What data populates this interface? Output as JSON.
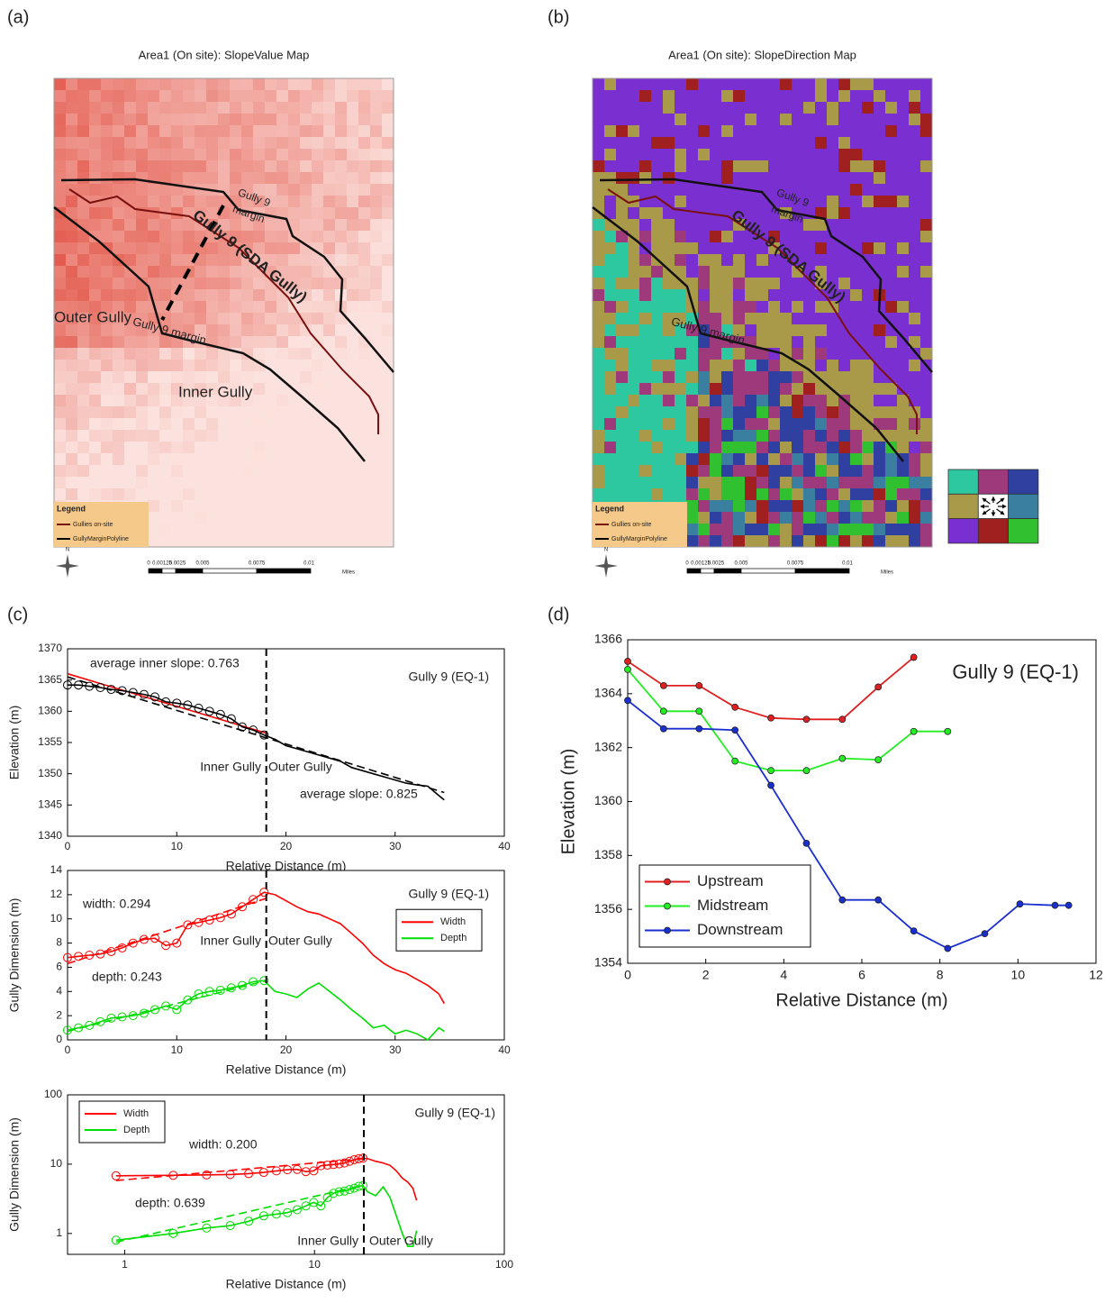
{
  "panel_labels": [
    "(a)",
    "(b)",
    "(c)",
    "(d)"
  ],
  "maps": [
    {
      "title": "Area1 (On site): SlopeValue Map",
      "labels": [
        "Gully 9",
        "margin",
        "Gully 9 (SDA Gully)",
        "Gully 9 margin",
        "Outer Gully",
        "Inner Gully"
      ],
      "legend": {
        "title": "Legend",
        "entries": [
          "Gullies on-site",
          "GullyMarginPolyline"
        ]
      },
      "north": "N",
      "scale": [
        "0",
        "0.00125",
        "0.0025",
        "0.005",
        "0.0075",
        "0.01",
        "Miles"
      ]
    },
    {
      "title": "Area1 (On site): SlopeDirection Map",
      "labels": [
        "Gully 9",
        "margin",
        "Gully 9 (SDA Gully)",
        "Gully 9 margin"
      ],
      "legend": {
        "title": "Legend",
        "entries": [
          "Gullies on-site",
          "GullyMarginPolyline"
        ]
      },
      "north": "N",
      "scale": [
        "0",
        "0.00125",
        "0.0025",
        "0.005",
        "0.0075",
        "0.01",
        "Miles"
      ]
    }
  ],
  "chart_data": [
    {
      "type": "line",
      "xlabel": "Relative Distance (m)",
      "ylabel": "Elevation (m)",
      "xlim": [
        0,
        40
      ],
      "ylim": [
        1340,
        1370
      ],
      "xticks": [
        0,
        10,
        20,
        30,
        40
      ],
      "yticks": [
        1340,
        1345,
        1350,
        1355,
        1360,
        1365,
        1370
      ],
      "marker": "circle",
      "vline": 18.2,
      "series": [
        {
          "color": "#000000",
          "x": [
            0,
            1,
            2,
            3,
            4,
            5,
            6,
            7,
            8,
            9,
            10,
            11,
            12,
            13,
            14,
            15,
            16,
            17,
            18,
            19,
            20,
            21,
            22,
            23,
            24,
            25,
            26,
            27,
            28,
            29,
            30,
            31,
            32,
            33,
            34,
            34.5
          ],
          "values": [
            1364.2,
            1364.2,
            1364,
            1363.8,
            1363.5,
            1363.3,
            1363,
            1362.7,
            1362.3,
            1361.5,
            1361.3,
            1361,
            1360.5,
            1360,
            1359.5,
            1358.8,
            1357.5,
            1357,
            1356.2,
            1355.5,
            1354.5,
            1354,
            1353.5,
            1353,
            1352.5,
            1352,
            1351,
            1350.5,
            1350,
            1349.5,
            1349,
            1348.5,
            1348.2,
            1348,
            1346.5,
            1345.8
          ]
        }
      ],
      "fits": [
        {
          "color": "#ff0000",
          "dashed": false,
          "x": [
            0,
            18.2
          ],
          "values": [
            1366,
            1356.5
          ]
        },
        {
          "color": "#000000",
          "dashed": true,
          "x": [
            0,
            34.5
          ],
          "values": [
            1365.5,
            1347
          ]
        }
      ],
      "annotations": [
        "average inner slope: 0.763",
        "Gully 9 (EQ-1)",
        "Inner Gully",
        "Outer Gully",
        "average slope: 0.825"
      ]
    },
    {
      "type": "line",
      "xlabel": "Relative Distance (m)",
      "ylabel": "Gully Dimension (m)",
      "xlim": [
        0,
        40
      ],
      "ylim": [
        0,
        14
      ],
      "xticks": [
        0,
        10,
        20,
        30,
        40
      ],
      "yticks": [
        0,
        2,
        4,
        6,
        8,
        10,
        12,
        14
      ],
      "marker": "circle",
      "vline": 18.2,
      "legend": "right",
      "series": [
        {
          "name": "Width",
          "color": "#ff0000",
          "x": [
            0,
            1,
            2,
            3,
            4,
            5,
            6,
            7,
            8,
            9,
            10,
            11,
            12,
            13,
            14,
            15,
            16,
            17,
            18,
            19,
            20,
            21,
            22,
            23,
            24,
            25,
            26,
            27,
            28,
            29,
            30,
            31,
            32,
            33,
            34,
            34.5
          ],
          "values": [
            6.8,
            6.9,
            7,
            7.1,
            7.3,
            7.6,
            8,
            8.3,
            8.4,
            7.8,
            8,
            9.5,
            9.7,
            9.9,
            10.1,
            10.4,
            11,
            11.6,
            12.2,
            12,
            11.5,
            11,
            10.6,
            10.4,
            10,
            9.6,
            8.8,
            8,
            7,
            6.3,
            5.8,
            5.5,
            5,
            4.5,
            3.8,
            3
          ]
        },
        {
          "name": "Depth",
          "color": "#00dd00",
          "x": [
            0,
            1,
            2,
            3,
            4,
            5,
            6,
            7,
            8,
            9,
            10,
            11,
            12,
            13,
            14,
            15,
            16,
            17,
            18,
            19,
            20,
            21,
            22,
            23,
            24,
            25,
            26,
            27,
            28,
            29,
            30,
            31,
            32,
            33,
            34,
            34.5
          ],
          "values": [
            0.8,
            1,
            1.2,
            1.5,
            1.8,
            1.9,
            2,
            2.2,
            2.5,
            2.8,
            2.5,
            3.3,
            3.8,
            4,
            4.1,
            4.3,
            4.5,
            4.8,
            4.9,
            4,
            3.8,
            3.5,
            4.2,
            4.7,
            4,
            3.3,
            2.5,
            1.8,
            1,
            1.2,
            0.5,
            0.8,
            0.5,
            0,
            1,
            0.7
          ]
        }
      ],
      "fits": [
        {
          "color": "#ff0000",
          "dashed": true,
          "x": [
            0,
            18.2
          ],
          "values": [
            6.3,
            11.7
          ]
        },
        {
          "color": "#00dd00",
          "dashed": true,
          "x": [
            0,
            18.2
          ],
          "values": [
            0.7,
            4.9
          ]
        }
      ],
      "annotations": [
        "width: 0.294",
        "Gully 9 (EQ-1)",
        "Inner Gully",
        "Outer Gully",
        "depth: 0.243"
      ]
    },
    {
      "type": "line",
      "xlabel": "Relative Distance (m)",
      "ylabel": "Gully Dimension (m)",
      "xscale": "log",
      "yscale": "log",
      "xlim": [
        0.5,
        100
      ],
      "ylim": [
        0.5,
        100
      ],
      "xticks": [
        1,
        10,
        100
      ],
      "yticks": [
        1,
        10,
        100
      ],
      "marker": "circle",
      "vline": 18.2,
      "legend": "upper left",
      "series": [
        {
          "name": "Width",
          "color": "#ff0000",
          "x": [
            0.9,
            1.8,
            2.7,
            3.6,
            4.5,
            5.4,
            6.3,
            7.2,
            8.1,
            9,
            9.9,
            10.8,
            11.7,
            12.6,
            13.5,
            14.4,
            15.3,
            16.2,
            17.1,
            18,
            19,
            21,
            23,
            25,
            27,
            29,
            31,
            33,
            34.5
          ],
          "values": [
            6.8,
            6.9,
            7,
            7.1,
            7.3,
            7.6,
            8,
            8.3,
            8.4,
            7.8,
            8,
            9.5,
            9.7,
            9.9,
            10.1,
            10.4,
            11,
            11.6,
            12,
            12.2,
            12,
            11,
            10.4,
            9.6,
            8,
            6.3,
            5.5,
            4.5,
            3
          ]
        },
        {
          "name": "Depth",
          "color": "#00dd00",
          "x": [
            0.9,
            1.8,
            2.7,
            3.6,
            4.5,
            5.4,
            6.3,
            7.2,
            8.1,
            9,
            9.9,
            10.8,
            11.7,
            12.6,
            13.5,
            14.4,
            15.3,
            16.2,
            17.1,
            18,
            19,
            21,
            23,
            25,
            27,
            29,
            31,
            33,
            34.5
          ],
          "values": [
            0.8,
            1,
            1.2,
            1.3,
            1.5,
            1.8,
            1.9,
            2,
            2.2,
            2.5,
            2.8,
            2.5,
            3.3,
            3.8,
            4,
            4.1,
            4.3,
            4.5,
            4.8,
            4.9,
            4,
            3.5,
            4.7,
            3.3,
            1.8,
            1,
            0.65,
            0.65,
            1.1
          ]
        }
      ],
      "fits": [
        {
          "color": "#ff0000",
          "dashed": true,
          "x": [
            0.9,
            18.2
          ],
          "values": [
            5.8,
            12
          ]
        },
        {
          "color": "#00dd00",
          "dashed": true,
          "x": [
            0.9,
            18.2
          ],
          "values": [
            0.75,
            5
          ]
        }
      ],
      "annotations": [
        "width: 0.200",
        "Gully 9 (EQ-1)",
        "depth: 0.639",
        "Inner Gully",
        "Outer Gully"
      ]
    },
    {
      "type": "line",
      "xlabel": "Relative Distance (m)",
      "ylabel": "Elevation (m)",
      "xlim": [
        0,
        12
      ],
      "ylim": [
        1354,
        1366
      ],
      "xticks": [
        0,
        2,
        4,
        6,
        8,
        10,
        12
      ],
      "yticks": [
        1354,
        1356,
        1358,
        1360,
        1362,
        1364,
        1366
      ],
      "marker": "dot",
      "legend": "lower left",
      "series": [
        {
          "name": "Upstream",
          "color": "#e02020",
          "x": [
            0,
            0.92,
            1.83,
            2.75,
            3.67,
            4.58,
            5.5,
            6.42,
            7.33
          ],
          "values": [
            1365.2,
            1364.3,
            1364.3,
            1363.5,
            1363.1,
            1363.05,
            1363.05,
            1364.25,
            1365.35
          ]
        },
        {
          "name": "Midstream",
          "color": "#22ee22",
          "x": [
            0,
            0.92,
            1.83,
            2.75,
            3.67,
            4.58,
            5.5,
            6.42,
            7.33,
            8.2
          ],
          "values": [
            1364.9,
            1363.35,
            1363.35,
            1361.5,
            1361.15,
            1361.15,
            1361.6,
            1361.55,
            1362.6,
            1362.6
          ]
        },
        {
          "name": "Downstream",
          "color": "#1a2fd0",
          "x": [
            0,
            0.92,
            1.83,
            2.75,
            3.67,
            4.58,
            5.5,
            6.42,
            7.33,
            8.2,
            9.15,
            10.05,
            10.95,
            11.3
          ],
          "values": [
            1363.75,
            1362.7,
            1362.7,
            1362.65,
            1360.6,
            1358.45,
            1356.35,
            1356.35,
            1355.2,
            1354.55,
            1355.1,
            1356.2,
            1356.15,
            1356.15
          ]
        }
      ],
      "annotations": [
        "Gully 9 (EQ-1)"
      ]
    }
  ]
}
